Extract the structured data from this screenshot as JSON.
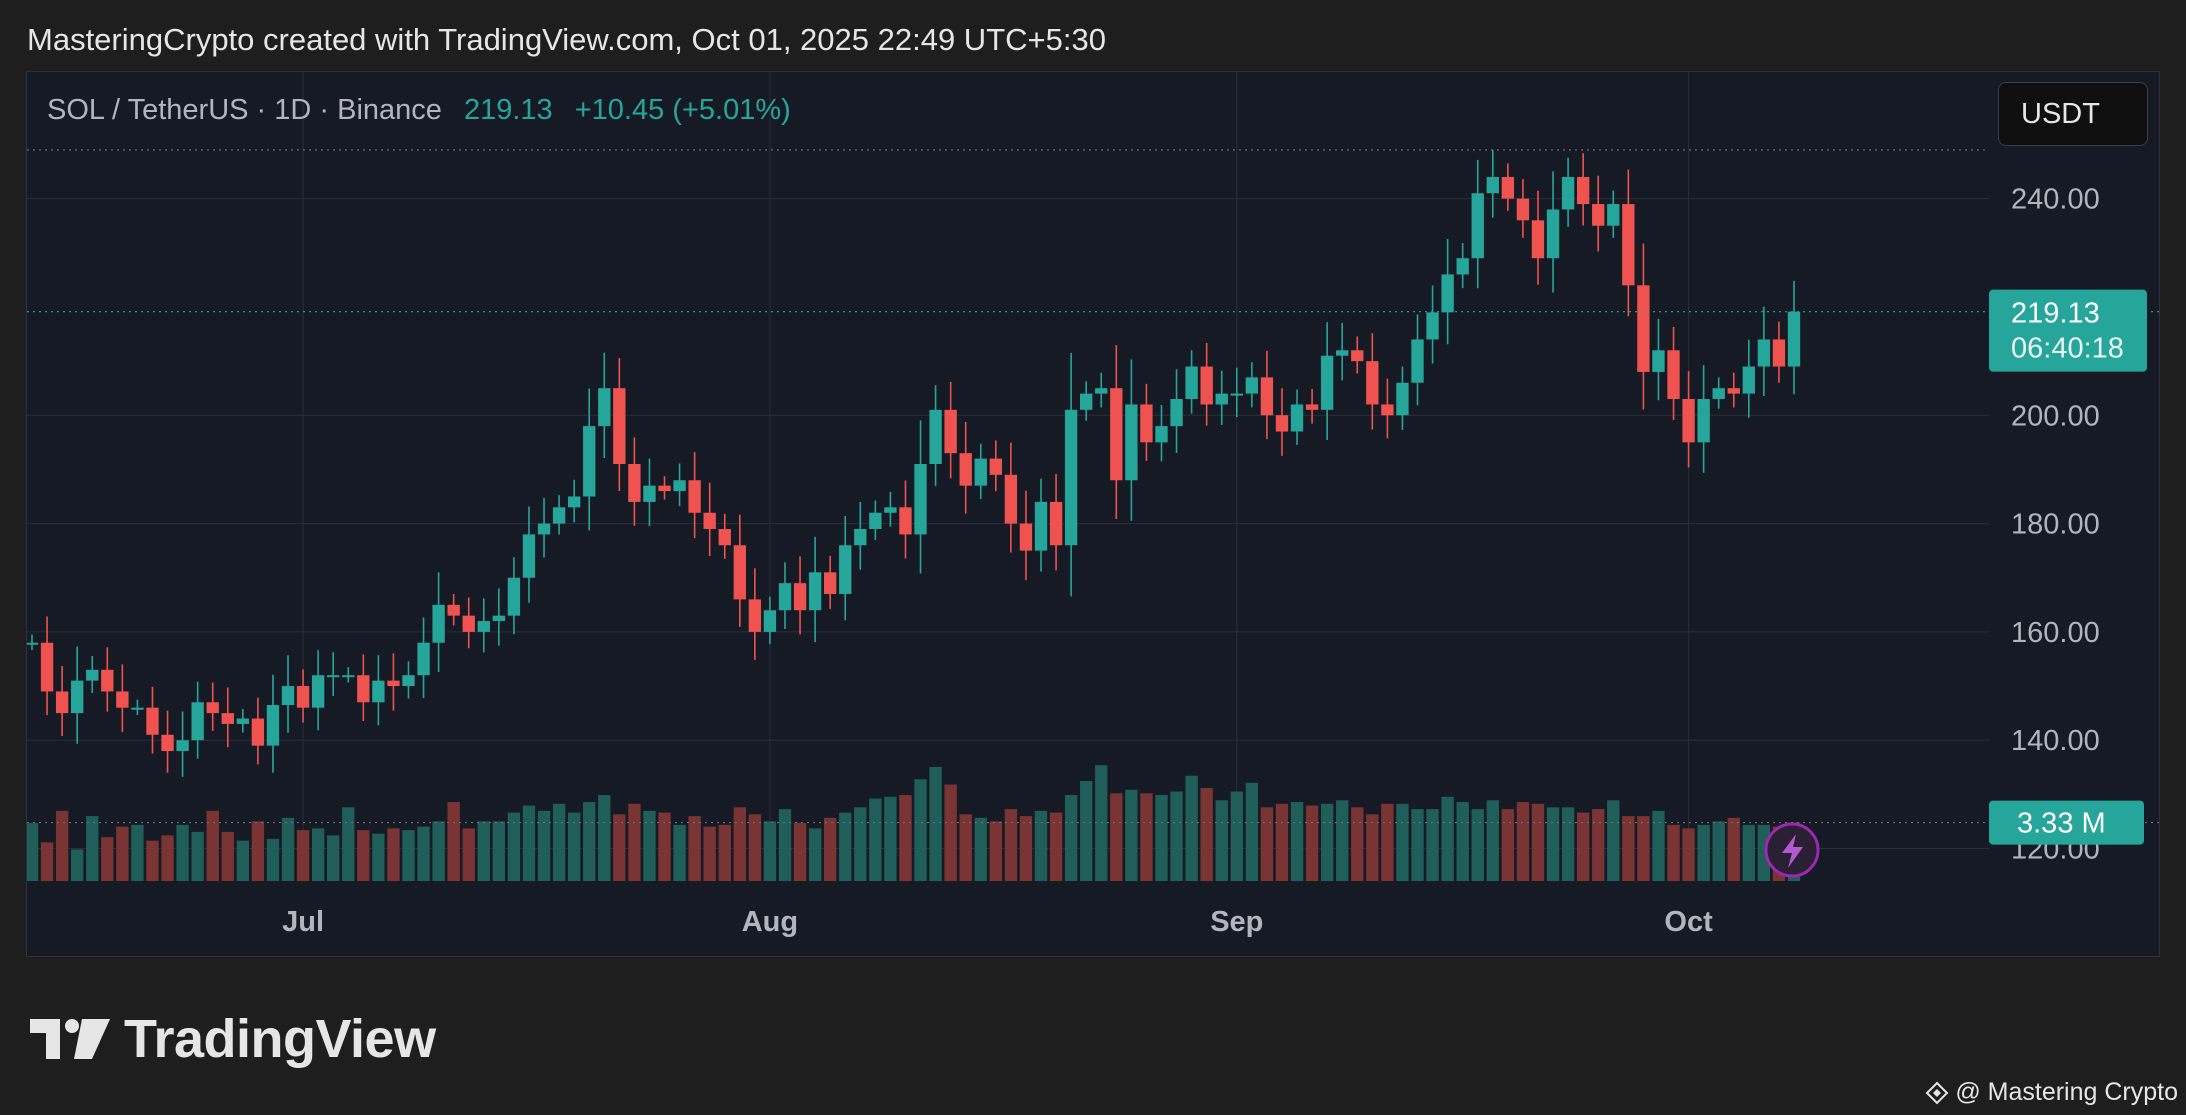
{
  "header": {
    "text": "MasteringCrypto created with TradingView.com, Oct 01, 2025 22:49 UTC+5:30"
  },
  "legend": {
    "symbol": "SOL / TetherUS · 1D · Binance",
    "price": "219.13",
    "change": "+10.45 (+5.01%)"
  },
  "currency_button": {
    "label": "USDT"
  },
  "logo": {
    "text": "TradingView"
  },
  "watermark": {
    "text": "@ Mastering Crypto"
  },
  "colors": {
    "up": "#26a69a",
    "down": "#ef5350",
    "up_volume": "#1f5e59",
    "down_volume": "#7a3434",
    "grid": "#2a2e39",
    "background": "#161a25"
  },
  "chart_data": {
    "type": "candlestick",
    "title": "SOL / TetherUS · 1D · Binance",
    "last_price": {
      "value": 219.13,
      "label": "219.13",
      "countdown": "06:40:18"
    },
    "last_volume": {
      "value": 3.33,
      "label": "3.33 M"
    },
    "y_range": [
      114,
      256
    ],
    "y_ticks": [
      {
        "value": 240,
        "label": "240.00"
      },
      {
        "value": 200,
        "label": "200.00"
      },
      {
        "value": 180,
        "label": "180.00"
      },
      {
        "value": 160,
        "label": "160.00"
      },
      {
        "value": 140,
        "label": "140.00"
      },
      {
        "value": 120,
        "label": "120.00"
      }
    ],
    "x_ticks": [
      {
        "date": "2025-07-01",
        "label": "Jul"
      },
      {
        "date": "2025-08-01",
        "label": "Aug"
      },
      {
        "date": "2025-09-01",
        "label": "Sep"
      },
      {
        "date": "2025-10-01",
        "label": "Oct"
      }
    ],
    "start_date": "2025-06-13",
    "end_date": "2025-10-01",
    "close_series_start": 158,
    "closes": [
      158.0,
      149.0,
      145.0,
      151.0,
      153.0,
      149.0,
      146.0,
      146.0,
      141.0,
      138.0,
      140.0,
      147.0,
      145.0,
      143.0,
      144.0,
      139.0,
      146.5,
      150.0,
      146.0,
      152.0,
      152.0,
      152.0,
      147.0,
      151.0,
      150.0,
      152.0,
      158.0,
      165.0,
      163.0,
      160.0,
      162.0,
      163.0,
      170.0,
      178.0,
      180.0,
      183.0,
      185.0,
      198.0,
      205.0,
      191.0,
      184.0,
      187.0,
      186.0,
      188.0,
      182.0,
      179.0,
      176.0,
      166.0,
      160.0,
      164.0,
      169.0,
      164.0,
      171.0,
      167.0,
      176.0,
      179.0,
      182.0,
      183.0,
      178.0,
      191.0,
      201.0,
      193.0,
      187.0,
      192.0,
      189.0,
      180.0,
      175.0,
      184.0,
      176.0,
      201.0,
      204.0,
      205.0,
      188.0,
      202.0,
      195.0,
      198.0,
      203.0,
      209.0,
      202.0,
      204.0,
      204.0,
      207.0,
      200.0,
      197.0,
      202.0,
      201.0,
      211.0,
      212.0,
      210.0,
      202.0,
      200.0,
      206.0,
      214.0,
      219.0,
      226.0,
      229.0,
      241.0,
      244.0,
      240.0,
      236.0,
      229.0,
      238.0,
      244.0,
      239.0,
      235.0,
      239.0,
      224.0,
      208.0,
      212.0,
      203.0,
      195.0,
      203.0,
      205.0,
      204.0,
      209.0,
      214.0,
      209.0,
      219.13
    ],
    "volume_unit": "M",
    "volume_y_range": [
      0,
      44
    ],
    "volumes": [
      3.3,
      2.2,
      4.0,
      1.8,
      3.7,
      2.5,
      3.1,
      3.2,
      2.3,
      2.6,
      3.2,
      2.8,
      4.0,
      2.8,
      2.3,
      3.4,
      2.4,
      3.6,
      2.9,
      3.0,
      2.6,
      4.2,
      2.9,
      2.7,
      3.0,
      2.9,
      3.1,
      3.4,
      4.5,
      3.0,
      3.4,
      3.4,
      3.9,
      4.3,
      4.0,
      4.4,
      3.9,
      4.5,
      4.9,
      3.8,
      4.4,
      4.0,
      3.9,
      3.2,
      3.7,
      3.1,
      3.2,
      4.2,
      3.8,
      3.4,
      4.1,
      3.3,
      3.0,
      3.6,
      3.9,
      4.2,
      4.7,
      4.8,
      4.9,
      5.8,
      6.5,
      5.5,
      3.8,
      3.6,
      3.4,
      4.1,
      3.7,
      4.0,
      3.9,
      4.9,
      5.7,
      6.6,
      5.0,
      5.2,
      5.0,
      4.9,
      5.1,
      6.0,
      5.3,
      4.6,
      5.1,
      5.6,
      4.2,
      4.4,
      4.5,
      4.3,
      4.4,
      4.6,
      4.2,
      3.8,
      4.4,
      4.4,
      4.1,
      4.1,
      4.8,
      4.5,
      4.1,
      4.6,
      4.1,
      4.5,
      4.4,
      4.2,
      4.2,
      3.9,
      4.1,
      4.6,
      3.7,
      3.7,
      4.0,
      3.2,
      3.0,
      3.2,
      3.4,
      3.6,
      3.2,
      3.2,
      3.1,
      3.33
    ]
  }
}
